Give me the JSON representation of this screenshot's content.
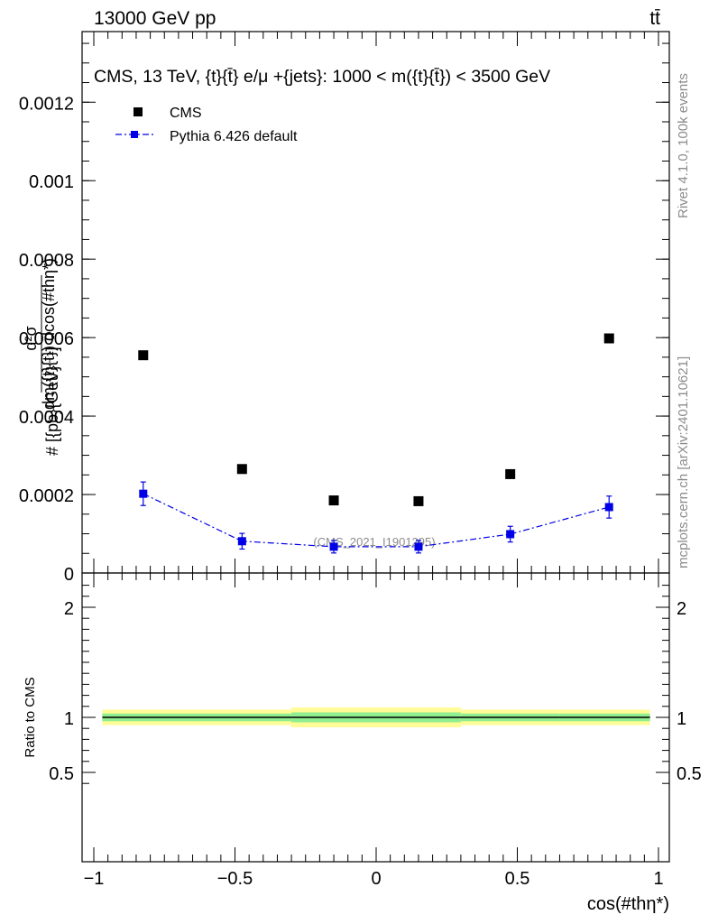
{
  "header": {
    "left": "13000 GeV pp",
    "right": "tt̄"
  },
  "side": {
    "rivet": "Rivet 4.1.0,  100k events",
    "mcplots": "mcplots.cern.ch [arXiv:2401.10621]"
  },
  "chart_data": [
    {
      "type": "scatter",
      "title": "CMS, 13 TeV, {t}{t̄} e/μ +{jets}: 1000 < m({t}{t̄}) < 3500 GeV",
      "ylabel": "#frac{d^{2}σ}{dm({t}{t̄}) dcos(#thη^{*})} [{pb}{GeV}^{-1}]",
      "ylabel_lines": [
        "d²σ",
        "dm({t}{t̄}) dcos(#thη*)",
        "# [{pb}{GeV}⁻¹]"
      ],
      "watermark": "(CMS_2021_I1901295)",
      "xlim": [
        -1.0,
        1.0
      ],
      "ylim": [
        0,
        0.00138
      ],
      "yticks": [
        {
          "v": 0,
          "label": "0"
        },
        {
          "v": 0.0002,
          "label": "0.0002"
        },
        {
          "v": 0.0004,
          "label": "0.0004"
        },
        {
          "v": 0.0006,
          "label": "0.0006"
        },
        {
          "v": 0.0008,
          "label": "0.0008"
        },
        {
          "v": 0.001,
          "label": "0.001"
        },
        {
          "v": 0.0012,
          "label": "0.0012"
        }
      ],
      "legend_position": "top-left",
      "series": [
        {
          "name": "CMS",
          "color": "#000000",
          "marker": "square",
          "x": [
            -0.825,
            -0.475,
            -0.15,
            0.15,
            0.475,
            0.825
          ],
          "y": [
            0.000555,
            0.000265,
            0.000185,
            0.000183,
            0.000252,
            0.000598
          ]
        },
        {
          "name": "Pythia 6.426 default",
          "color": "#0000e6",
          "marker": "square",
          "line": "dash-dot",
          "x": [
            -0.825,
            -0.475,
            -0.15,
            0.15,
            0.475,
            0.825
          ],
          "y": [
            0.000202,
            8.1e-05,
            6.7e-05,
            6.7e-05,
            9.9e-05,
            0.000168
          ],
          "err": [
            3e-05,
            2e-05,
            1.6e-05,
            1.6e-05,
            2e-05,
            2.8e-05
          ]
        }
      ]
    },
    {
      "type": "area",
      "ylabel": "Ratio to CMS",
      "xlabel": "cos(#thη*)",
      "xlim": [
        -1.0,
        1.0
      ],
      "ylim": [
        0.35,
        2.28
      ],
      "xticks": [
        {
          "v": -1,
          "label": "−1"
        },
        {
          "v": -0.5,
          "label": "−0.5"
        },
        {
          "v": 0,
          "label": "0"
        },
        {
          "v": 0.5,
          "label": "0.5"
        },
        {
          "v": 1,
          "label": "1"
        }
      ],
      "yticks": [
        {
          "v": 0.5,
          "label": "0.5"
        },
        {
          "v": 1,
          "label": "1"
        },
        {
          "v": 2,
          "label": "2"
        }
      ],
      "bins": [
        -0.97,
        -0.65,
        -0.3,
        0.0,
        0.3,
        0.65,
        0.97
      ],
      "inner_band": [
        [
          0.965,
          1.035
        ],
        [
          0.965,
          1.035
        ],
        [
          0.955,
          1.045
        ],
        [
          0.955,
          1.045
        ],
        [
          0.965,
          1.035
        ],
        [
          0.965,
          1.035
        ]
      ],
      "outer_band": [
        [
          0.93,
          1.07
        ],
        [
          0.93,
          1.07
        ],
        [
          0.91,
          1.09
        ],
        [
          0.91,
          1.09
        ],
        [
          0.93,
          1.07
        ],
        [
          0.93,
          1.07
        ]
      ],
      "colors": {
        "inner": "#90ee90",
        "outer": "#fffb96",
        "line": "#000000"
      }
    }
  ]
}
